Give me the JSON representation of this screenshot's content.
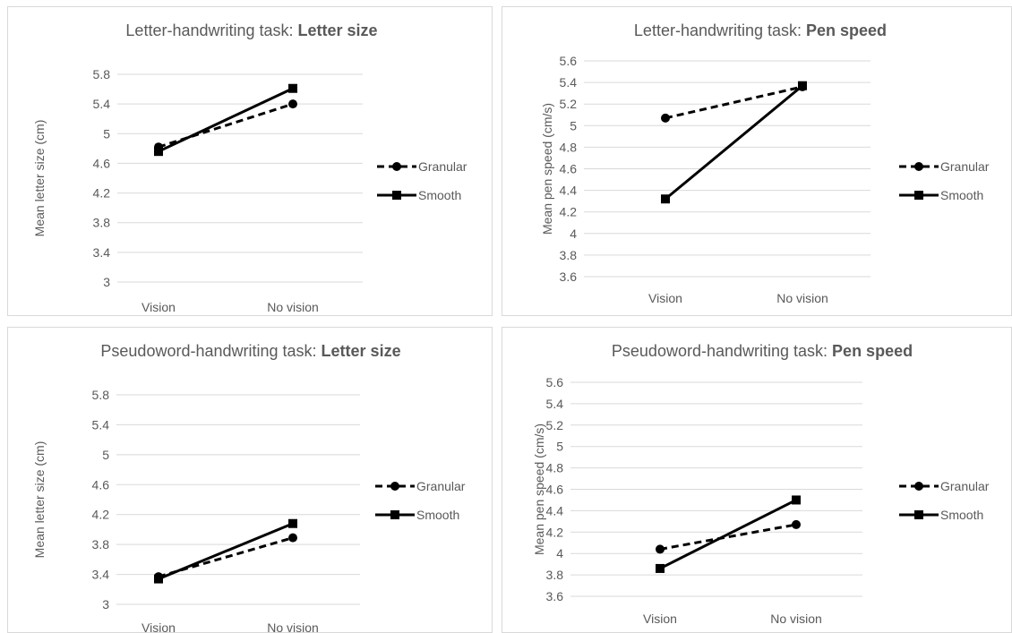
{
  "chart_data": [
    {
      "type": "line",
      "title_prefix": "Letter-handwriting task: ",
      "title_bold": "Letter size",
      "xlabel": "",
      "ylabel": "Mean letter size (cm)",
      "categories": [
        "Vision",
        "No vision"
      ],
      "ylim": [
        3,
        5.8
      ],
      "yticks": [
        "3",
        "3.4",
        "3.8",
        "4.2",
        "4.6",
        "5",
        "5.4",
        "5.8"
      ],
      "series": [
        {
          "name": "Granular",
          "values": [
            4.82,
            5.4
          ],
          "style": "dashed",
          "marker": "circle"
        },
        {
          "name": "Smooth",
          "values": [
            4.76,
            5.61
          ],
          "style": "solid",
          "marker": "square"
        }
      ],
      "grid": true,
      "legend": "right"
    },
    {
      "type": "line",
      "title_prefix": "Letter-handwriting task: ",
      "title_bold": "Pen speed",
      "xlabel": "",
      "ylabel": "Mean pen speed (cm/s)",
      "categories": [
        "Vision",
        "No vision"
      ],
      "ylim": [
        3.6,
        5.6
      ],
      "yticks": [
        "3.6",
        "3.8",
        "4",
        "4.2",
        "4.4",
        "4.6",
        "4.8",
        "5",
        "5.2",
        "5.4",
        "5.6"
      ],
      "series": [
        {
          "name": "Granular",
          "values": [
            5.07,
            5.36
          ],
          "style": "dashed",
          "marker": "circle"
        },
        {
          "name": "Smooth",
          "values": [
            4.32,
            5.37
          ],
          "style": "solid",
          "marker": "square"
        }
      ],
      "grid": true,
      "legend": "right"
    },
    {
      "type": "line",
      "title_prefix": "Pseudoword-handwriting task: ",
      "title_bold": "Letter size",
      "xlabel": "",
      "ylabel": "Mean letter size (cm)",
      "categories": [
        "Vision",
        "No vision"
      ],
      "ylim": [
        3,
        5.8
      ],
      "yticks": [
        "3",
        "3.4",
        "3.8",
        "4.2",
        "4.6",
        "5",
        "5.4",
        "5.8"
      ],
      "series": [
        {
          "name": "Granular",
          "values": [
            3.37,
            3.89
          ],
          "style": "dashed",
          "marker": "circle"
        },
        {
          "name": "Smooth",
          "values": [
            3.34,
            4.08
          ],
          "style": "solid",
          "marker": "square"
        }
      ],
      "grid": true,
      "legend": "right"
    },
    {
      "type": "line",
      "title_prefix": "Pseudoword-handwriting task: ",
      "title_bold": "Pen speed",
      "xlabel": "",
      "ylabel": "Mean pen speed (cm/s)",
      "categories": [
        "Vision",
        "No vision"
      ],
      "ylim": [
        3.6,
        5.6
      ],
      "yticks": [
        "3.6",
        "3.8",
        "4",
        "4.2",
        "4.4",
        "4.6",
        "4.8",
        "5",
        "5.2",
        "5.4",
        "5.6"
      ],
      "series": [
        {
          "name": "Granular",
          "values": [
            4.04,
            4.27
          ],
          "style": "dashed",
          "marker": "circle"
        },
        {
          "name": "Smooth",
          "values": [
            3.86,
            4.5
          ],
          "style": "solid",
          "marker": "square"
        }
      ],
      "grid": true,
      "legend": "right"
    }
  ]
}
